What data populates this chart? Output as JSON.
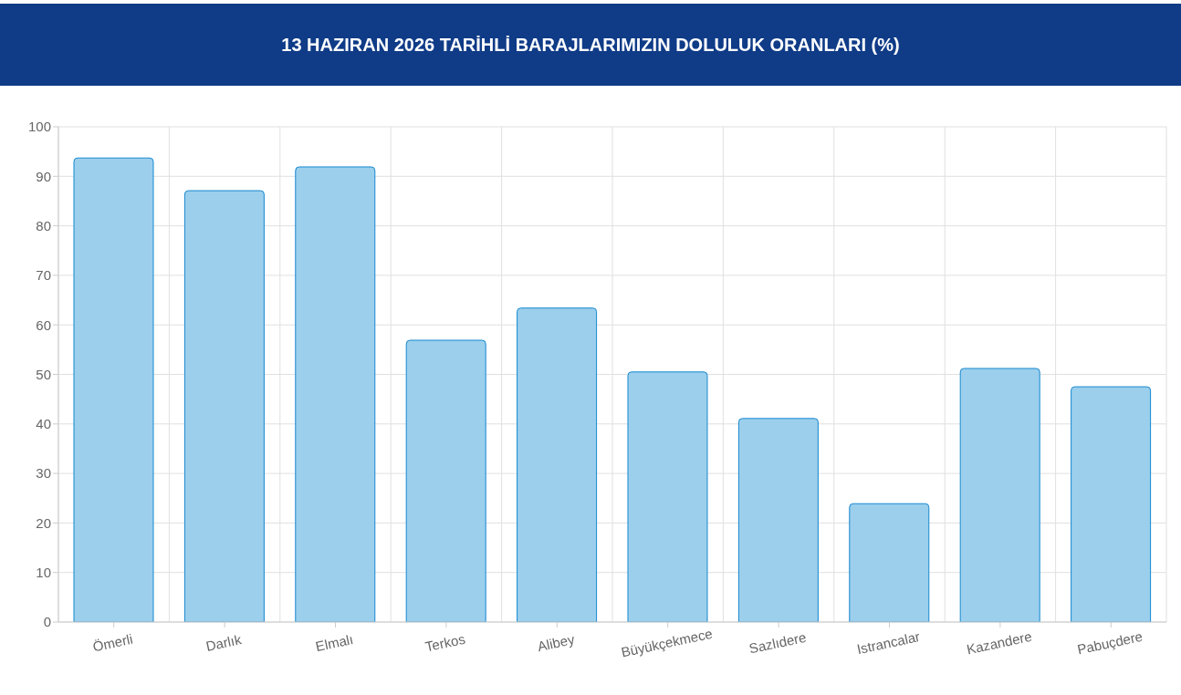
{
  "chart_data": {
    "type": "bar",
    "title": "13 HAZIRAN 2026 TARİHLİ BARAJLARIMIZIN DOLULUK ORANLARI (%)",
    "categories": [
      "Ömerli",
      "Darlık",
      "Elmalı",
      "Terkos",
      "Alibey",
      "Büyükçekmece",
      "Sazlıdere",
      "Istrancalar",
      "Kazandere",
      "Pabuçdere"
    ],
    "values": [
      93.7,
      87.1,
      91.9,
      56.9,
      63.4,
      50.5,
      41.1,
      23.9,
      51.2,
      47.5
    ],
    "color": "#9ccfec",
    "ylim": [
      0,
      100
    ],
    "yticks": [
      0,
      10,
      20,
      30,
      40,
      50,
      60,
      70,
      80,
      90,
      100
    ],
    "grid": true,
    "legend": false
  }
}
